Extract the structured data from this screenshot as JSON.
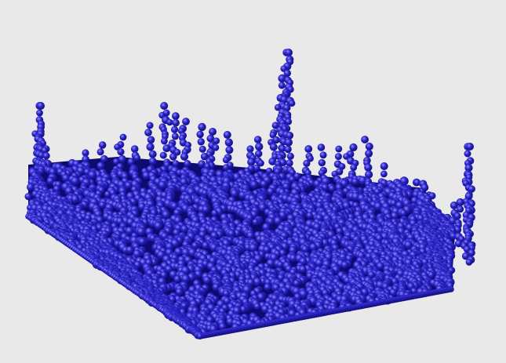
{
  "scene": {
    "subject": "particle-fluid-simulation",
    "background_color": "#e9e9e9",
    "particle_color": "#2a24c8",
    "particle_shadow_color": "#0e0a6e",
    "particle_highlight_color": "#8d88ff"
  }
}
